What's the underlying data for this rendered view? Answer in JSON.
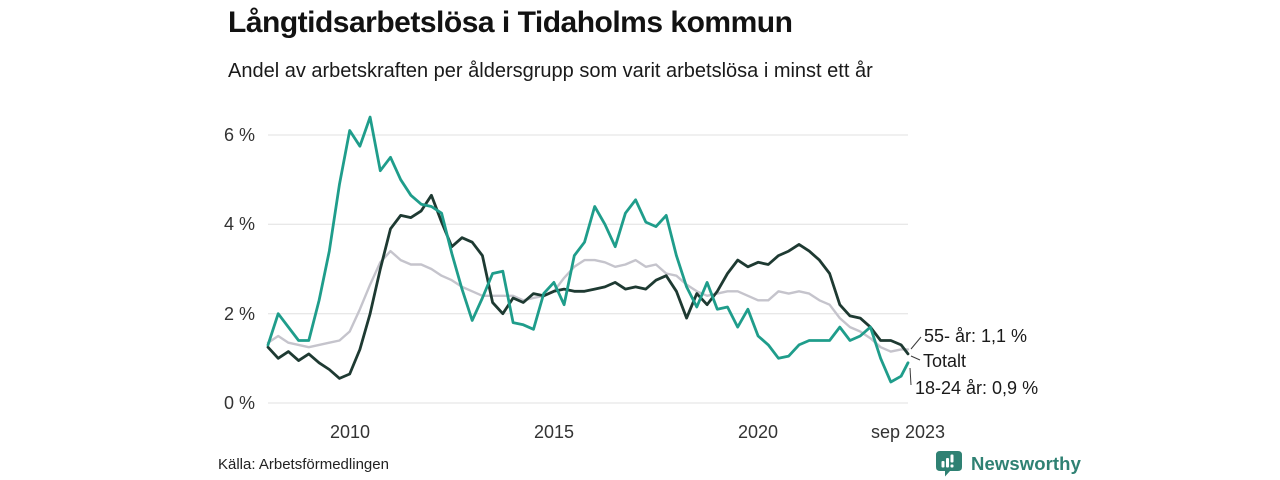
{
  "header": {
    "title": "Långtidsarbetslösa i Tidaholms kommun",
    "subtitle": "Andel av arbetskraften per åldersgrupp som varit arbetslösa i minst ett år"
  },
  "footer": {
    "source": "Källa: Arbetsförmedlingen",
    "brand": "Newsworthy"
  },
  "colors": {
    "teal": "#1f9d8b",
    "dark_green": "#1e3a32",
    "gray": "#c5c4cc",
    "grid": "#e0e0e0",
    "leader": "#3a3a3a",
    "brand": "#2f8173",
    "text": "#1a1a1a",
    "axis_text": "#333333"
  },
  "chart_data": {
    "type": "line",
    "title": "Långtidsarbetslösa i Tidaholms kommun",
    "subtitle": "Andel av arbetskraften per åldersgrupp som varit arbetslösa i minst ett år",
    "source": "Källa: Arbetsförmedlingen",
    "unit": "% av arbetskraften",
    "grid": "horizontal only",
    "legend_position": "end-of-line labels right",
    "xlim": [
      2008.0,
      2023.67
    ],
    "ylim": [
      0,
      6.6
    ],
    "y_ticks": {
      "values": [
        0,
        2,
        4,
        6
      ],
      "labels": [
        "0 %",
        "2 %",
        "4 %",
        "6 %"
      ]
    },
    "x_ticks": [
      {
        "x": 2010,
        "label": "2010"
      },
      {
        "x": 2015,
        "label": "2015"
      },
      {
        "x": 2020,
        "label": "2020"
      },
      {
        "x": 2023.67,
        "label": "sep 2023"
      }
    ],
    "x": [
      2008,
      2008.25,
      2008.5,
      2008.75,
      2009,
      2009.25,
      2009.5,
      2009.75,
      2010,
      2010.25,
      2010.5,
      2010.75,
      2011,
      2011.25,
      2011.5,
      2011.75,
      2012,
      2012.25,
      2012.5,
      2012.75,
      2013,
      2013.25,
      2013.5,
      2013.75,
      2014,
      2014.25,
      2014.5,
      2014.75,
      2015,
      2015.25,
      2015.5,
      2015.75,
      2016,
      2016.25,
      2016.5,
      2016.75,
      2017,
      2017.25,
      2017.5,
      2017.75,
      2018,
      2018.25,
      2018.5,
      2018.75,
      2019,
      2019.25,
      2019.5,
      2019.75,
      2020,
      2020.25,
      2020.5,
      2020.75,
      2021,
      2021.25,
      2021.5,
      2021.75,
      2022,
      2022.25,
      2022.5,
      2022.75,
      2023,
      2023.25,
      2023.5,
      2023.67
    ],
    "series": [
      {
        "id": "totalt",
        "name": "Totalt",
        "color": "#c5c4cc",
        "width": 2.4,
        "last_value_label": "Totalt",
        "values": [
          1.35,
          1.5,
          1.35,
          1.3,
          1.25,
          1.3,
          1.35,
          1.4,
          1.6,
          2.1,
          2.65,
          3.15,
          3.4,
          3.2,
          3.1,
          3.1,
          3.0,
          2.85,
          2.75,
          2.6,
          2.5,
          2.4,
          2.4,
          2.4,
          2.4,
          2.3,
          2.35,
          2.4,
          2.5,
          2.8,
          3.05,
          3.2,
          3.2,
          3.15,
          3.05,
          3.1,
          3.2,
          3.05,
          3.1,
          2.9,
          2.85,
          2.65,
          2.5,
          2.4,
          2.45,
          2.5,
          2.5,
          2.4,
          2.3,
          2.3,
          2.5,
          2.45,
          2.5,
          2.45,
          2.3,
          2.2,
          1.9,
          1.7,
          1.6,
          1.45,
          1.25,
          1.15,
          1.2,
          1.2
        ]
      },
      {
        "id": "55-ar",
        "name": "55- år",
        "color": "#1e3a32",
        "width": 2.8,
        "last_value_label": "55- år: 1,1 %",
        "values": [
          1.25,
          1.0,
          1.15,
          0.95,
          1.1,
          0.9,
          0.75,
          0.55,
          0.65,
          1.2,
          2.0,
          3.0,
          3.9,
          4.2,
          4.15,
          4.3,
          4.65,
          4.05,
          3.5,
          3.7,
          3.6,
          3.3,
          2.25,
          2.0,
          2.35,
          2.25,
          2.45,
          2.4,
          2.5,
          2.55,
          2.5,
          2.5,
          2.55,
          2.6,
          2.7,
          2.55,
          2.6,
          2.55,
          2.75,
          2.85,
          2.5,
          1.9,
          2.45,
          2.2,
          2.5,
          2.9,
          3.2,
          3.05,
          3.15,
          3.1,
          3.3,
          3.4,
          3.55,
          3.4,
          3.2,
          2.9,
          2.2,
          1.95,
          1.9,
          1.7,
          1.4,
          1.4,
          1.3,
          1.1
        ]
      },
      {
        "id": "18-24-ar",
        "name": "18-24 år",
        "color": "#1f9d8b",
        "width": 2.8,
        "last_value_label": "18-24 år: 0,9 %",
        "values": [
          1.3,
          2.0,
          1.7,
          1.4,
          1.4,
          2.3,
          3.4,
          4.9,
          6.1,
          5.75,
          6.4,
          5.2,
          5.5,
          5.0,
          4.65,
          4.45,
          4.4,
          4.25,
          3.35,
          2.55,
          1.85,
          2.35,
          2.9,
          2.95,
          1.8,
          1.75,
          1.65,
          2.45,
          2.7,
          2.2,
          3.3,
          3.6,
          4.4,
          4.0,
          3.5,
          4.25,
          4.55,
          4.05,
          3.95,
          4.2,
          3.3,
          2.6,
          2.15,
          2.7,
          2.1,
          2.15,
          1.7,
          2.1,
          1.5,
          1.3,
          1.0,
          1.05,
          1.3,
          1.4,
          1.4,
          1.4,
          1.7,
          1.4,
          1.5,
          1.7,
          1.0,
          0.47,
          0.6,
          0.9
        ]
      }
    ],
    "end_labels": [
      {
        "text": "55- år: 1,1 %"
      },
      {
        "text": "Totalt"
      },
      {
        "text": "18-24 år: 0,9 %"
      }
    ]
  }
}
